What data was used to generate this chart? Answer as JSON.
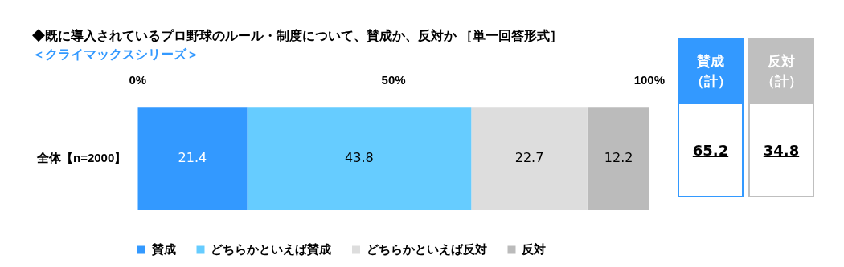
{
  "chart_data": [
    {
      "type": "bar",
      "title": "◆既に導入されているプロ野球のルール・制度について、賛成か、反対か ［単一回答形式］",
      "subtitle": "＜クライマックスシリーズ＞",
      "orientation": "horizontal",
      "stacked": true,
      "categories": [
        "全体【n=2000】"
      ],
      "series": [
        {
          "name": "賛成",
          "color": "#3399ff",
          "values": [
            21.4
          ]
        },
        {
          "name": "どちらかといえば賛成",
          "color": "#66ccff",
          "values": [
            43.8
          ]
        },
        {
          "name": "どちらかといえば反対",
          "color": "#dddddd",
          "values": [
            22.7
          ]
        },
        {
          "name": "反対",
          "color": "#bbbbbb",
          "values": [
            12.2
          ]
        }
      ],
      "xlim": [
        0,
        100
      ],
      "xticks": [
        {
          "value": 0,
          "label": "0%"
        },
        {
          "value": 50,
          "label": "50%"
        },
        {
          "value": 100,
          "label": "100%"
        }
      ],
      "data_labels": true,
      "legend": "bottom",
      "grid": false
    },
    {
      "type": "other",
      "categories": [
        "賛成（計）",
        "反対（計）"
      ],
      "values": [
        65.2,
        34.8
      ],
      "colors": [
        "#3399ff",
        "#bfbfbf"
      ],
      "data_labels": true
    }
  ]
}
